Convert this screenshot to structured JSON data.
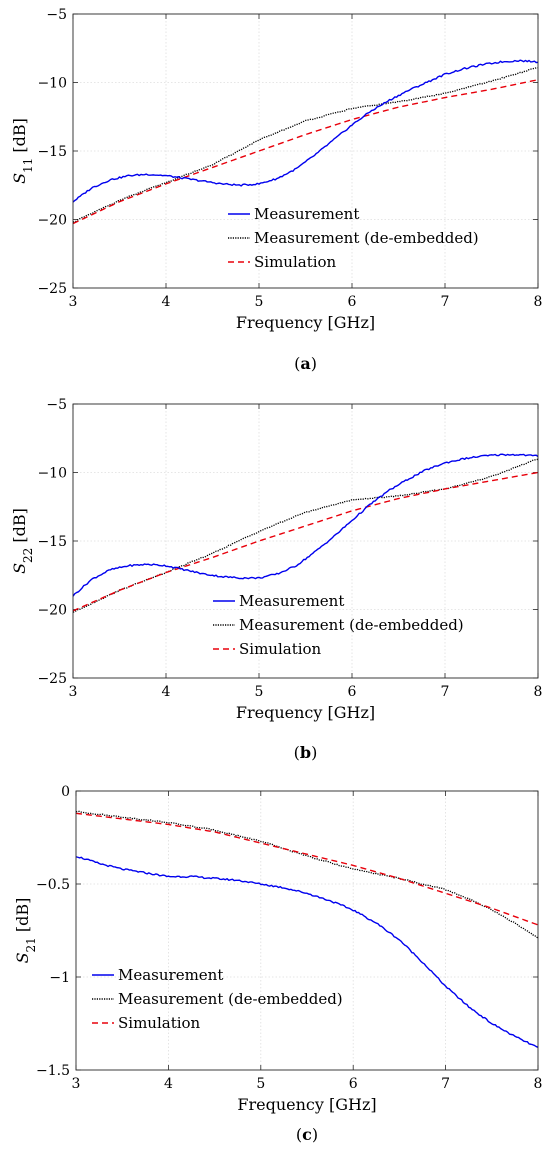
{
  "colors": {
    "measurement": "#0000ee",
    "deembedded": "#000000",
    "simulation": "#e8000b",
    "grid": "#dedede",
    "axes": "#262626"
  },
  "chart_data": [
    {
      "type": "line",
      "caption": "(a)",
      "xlabel": "Frequency [GHz]",
      "ylabel_main": "S",
      "ylabel_sub": "11",
      "ylabel_unit": " [dB]",
      "xlim": [
        3,
        8
      ],
      "ylim": [
        -25,
        -5
      ],
      "xticks": [
        "3",
        "4",
        "5",
        "6",
        "7",
        "8"
      ],
      "yticks": [
        "−25",
        "−20",
        "−15",
        "−10",
        "−5"
      ],
      "grid": "dotted",
      "legend_position": "bottom-center",
      "series": [
        {
          "name": "Measurement",
          "style": "solid",
          "color_key": "measurement",
          "x": [
            3.0,
            3.2,
            3.4,
            3.6,
            3.8,
            4.0,
            4.2,
            4.4,
            4.6,
            4.8,
            5.0,
            5.2,
            5.4,
            5.6,
            5.8,
            6.0,
            6.2,
            6.4,
            6.6,
            6.8,
            7.0,
            7.2,
            7.4,
            7.6,
            7.8,
            8.0
          ],
          "y": [
            -18.7,
            -17.7,
            -17.1,
            -16.8,
            -16.7,
            -16.8,
            -17.0,
            -17.2,
            -17.4,
            -17.5,
            -17.4,
            -17.0,
            -16.3,
            -15.3,
            -14.2,
            -13.1,
            -12.1,
            -11.3,
            -10.6,
            -10.0,
            -9.4,
            -9.0,
            -8.7,
            -8.5,
            -8.4,
            -8.5
          ]
        },
        {
          "name": "Measurement (de-embedded)",
          "style": "dotted",
          "color_key": "deembedded",
          "x": [
            3.0,
            3.5,
            4.0,
            4.5,
            5.0,
            5.5,
            6.0,
            6.5,
            7.0,
            7.5,
            8.0
          ],
          "y": [
            -20.2,
            -18.6,
            -17.3,
            -16.0,
            -14.2,
            -12.8,
            -11.9,
            -11.4,
            -10.8,
            -9.9,
            -8.9
          ]
        },
        {
          "name": "Simulation",
          "style": "dashed",
          "color_key": "simulation",
          "x": [
            3.0,
            3.5,
            4.0,
            4.5,
            5.0,
            5.5,
            6.0,
            6.5,
            7.0,
            7.5,
            8.0
          ],
          "y": [
            -20.3,
            -18.7,
            -17.4,
            -16.2,
            -15.0,
            -13.8,
            -12.7,
            -11.8,
            -11.1,
            -10.5,
            -9.8
          ]
        }
      ]
    },
    {
      "type": "line",
      "caption": "(b)",
      "xlabel": "Frequency [GHz]",
      "ylabel_main": "S",
      "ylabel_sub": "22",
      "ylabel_unit": " [dB]",
      "xlim": [
        3,
        8
      ],
      "ylim": [
        -25,
        -5
      ],
      "xticks": [
        "3",
        "4",
        "5",
        "6",
        "7",
        "8"
      ],
      "yticks": [
        "−25",
        "−20",
        "−15",
        "−10",
        "−5"
      ],
      "grid": "dotted",
      "legend_position": "bottom-center",
      "series": [
        {
          "name": "Measurement",
          "style": "solid",
          "color_key": "measurement",
          "x": [
            3.0,
            3.2,
            3.4,
            3.6,
            3.8,
            4.0,
            4.2,
            4.4,
            4.6,
            4.8,
            5.0,
            5.2,
            5.4,
            5.6,
            5.8,
            6.0,
            6.2,
            6.4,
            6.6,
            6.8,
            7.0,
            7.2,
            7.4,
            7.6,
            7.8,
            8.0
          ],
          "y": [
            -19.0,
            -17.8,
            -17.1,
            -16.8,
            -16.7,
            -16.8,
            -17.1,
            -17.4,
            -17.6,
            -17.7,
            -17.7,
            -17.4,
            -16.8,
            -15.8,
            -14.7,
            -13.5,
            -12.3,
            -11.3,
            -10.5,
            -9.8,
            -9.3,
            -9.0,
            -8.8,
            -8.7,
            -8.7,
            -8.8
          ]
        },
        {
          "name": "Measurement (de-embedded)",
          "style": "dotted",
          "color_key": "deembedded",
          "x": [
            3.0,
            3.5,
            4.0,
            4.5,
            5.0,
            5.5,
            6.0,
            6.5,
            7.0,
            7.5,
            8.0
          ],
          "y": [
            -20.2,
            -18.6,
            -17.3,
            -15.9,
            -14.3,
            -12.9,
            -12.0,
            -11.7,
            -11.2,
            -10.3,
            -9.0
          ]
        },
        {
          "name": "Simulation",
          "style": "dashed",
          "color_key": "simulation",
          "x": [
            3.0,
            3.5,
            4.0,
            4.5,
            5.0,
            5.5,
            6.0,
            6.5,
            7.0,
            7.5,
            8.0
          ],
          "y": [
            -20.1,
            -18.6,
            -17.3,
            -16.2,
            -15.0,
            -13.9,
            -12.8,
            -11.9,
            -11.2,
            -10.6,
            -10.0
          ]
        }
      ]
    },
    {
      "type": "line",
      "caption": "(c)",
      "xlabel": "Frequency [GHz]",
      "ylabel_main": "S",
      "ylabel_sub": "21",
      "ylabel_unit": " [dB]",
      "xlim": [
        3,
        8
      ],
      "ylim": [
        -1.5,
        0
      ],
      "xticks": [
        "3",
        "4",
        "5",
        "6",
        "7",
        "8"
      ],
      "yticks": [
        "−1.5",
        "−1",
        "−0.5",
        "0"
      ],
      "grid": "dotted",
      "legend_position": "bottom-left",
      "series": [
        {
          "name": "Measurement",
          "style": "solid",
          "color_key": "measurement",
          "x": [
            3.0,
            3.25,
            3.5,
            3.75,
            4.0,
            4.25,
            4.5,
            4.75,
            5.0,
            5.25,
            5.5,
            5.75,
            6.0,
            6.25,
            6.5,
            6.75,
            7.0,
            7.25,
            7.5,
            7.75,
            8.0
          ],
          "y": [
            -0.35,
            -0.39,
            -0.42,
            -0.44,
            -0.46,
            -0.46,
            -0.47,
            -0.48,
            -0.5,
            -0.52,
            -0.55,
            -0.59,
            -0.64,
            -0.71,
            -0.8,
            -0.92,
            -1.05,
            -1.16,
            -1.25,
            -1.32,
            -1.38
          ]
        },
        {
          "name": "Measurement (de-embedded)",
          "style": "dotted",
          "color_key": "deembedded",
          "x": [
            3.0,
            3.5,
            4.0,
            4.5,
            5.0,
            5.5,
            6.0,
            6.5,
            7.0,
            7.25,
            7.5,
            7.75,
            8.0
          ],
          "y": [
            -0.11,
            -0.14,
            -0.17,
            -0.21,
            -0.27,
            -0.35,
            -0.42,
            -0.47,
            -0.53,
            -0.58,
            -0.64,
            -0.71,
            -0.79
          ]
        },
        {
          "name": "Simulation",
          "style": "dashed",
          "color_key": "simulation",
          "x": [
            3.0,
            3.5,
            4.0,
            4.5,
            5.0,
            5.5,
            6.0,
            6.5,
            7.0,
            7.5,
            8.0
          ],
          "y": [
            -0.12,
            -0.15,
            -0.18,
            -0.22,
            -0.28,
            -0.34,
            -0.4,
            -0.47,
            -0.55,
            -0.63,
            -0.72
          ]
        }
      ]
    }
  ]
}
